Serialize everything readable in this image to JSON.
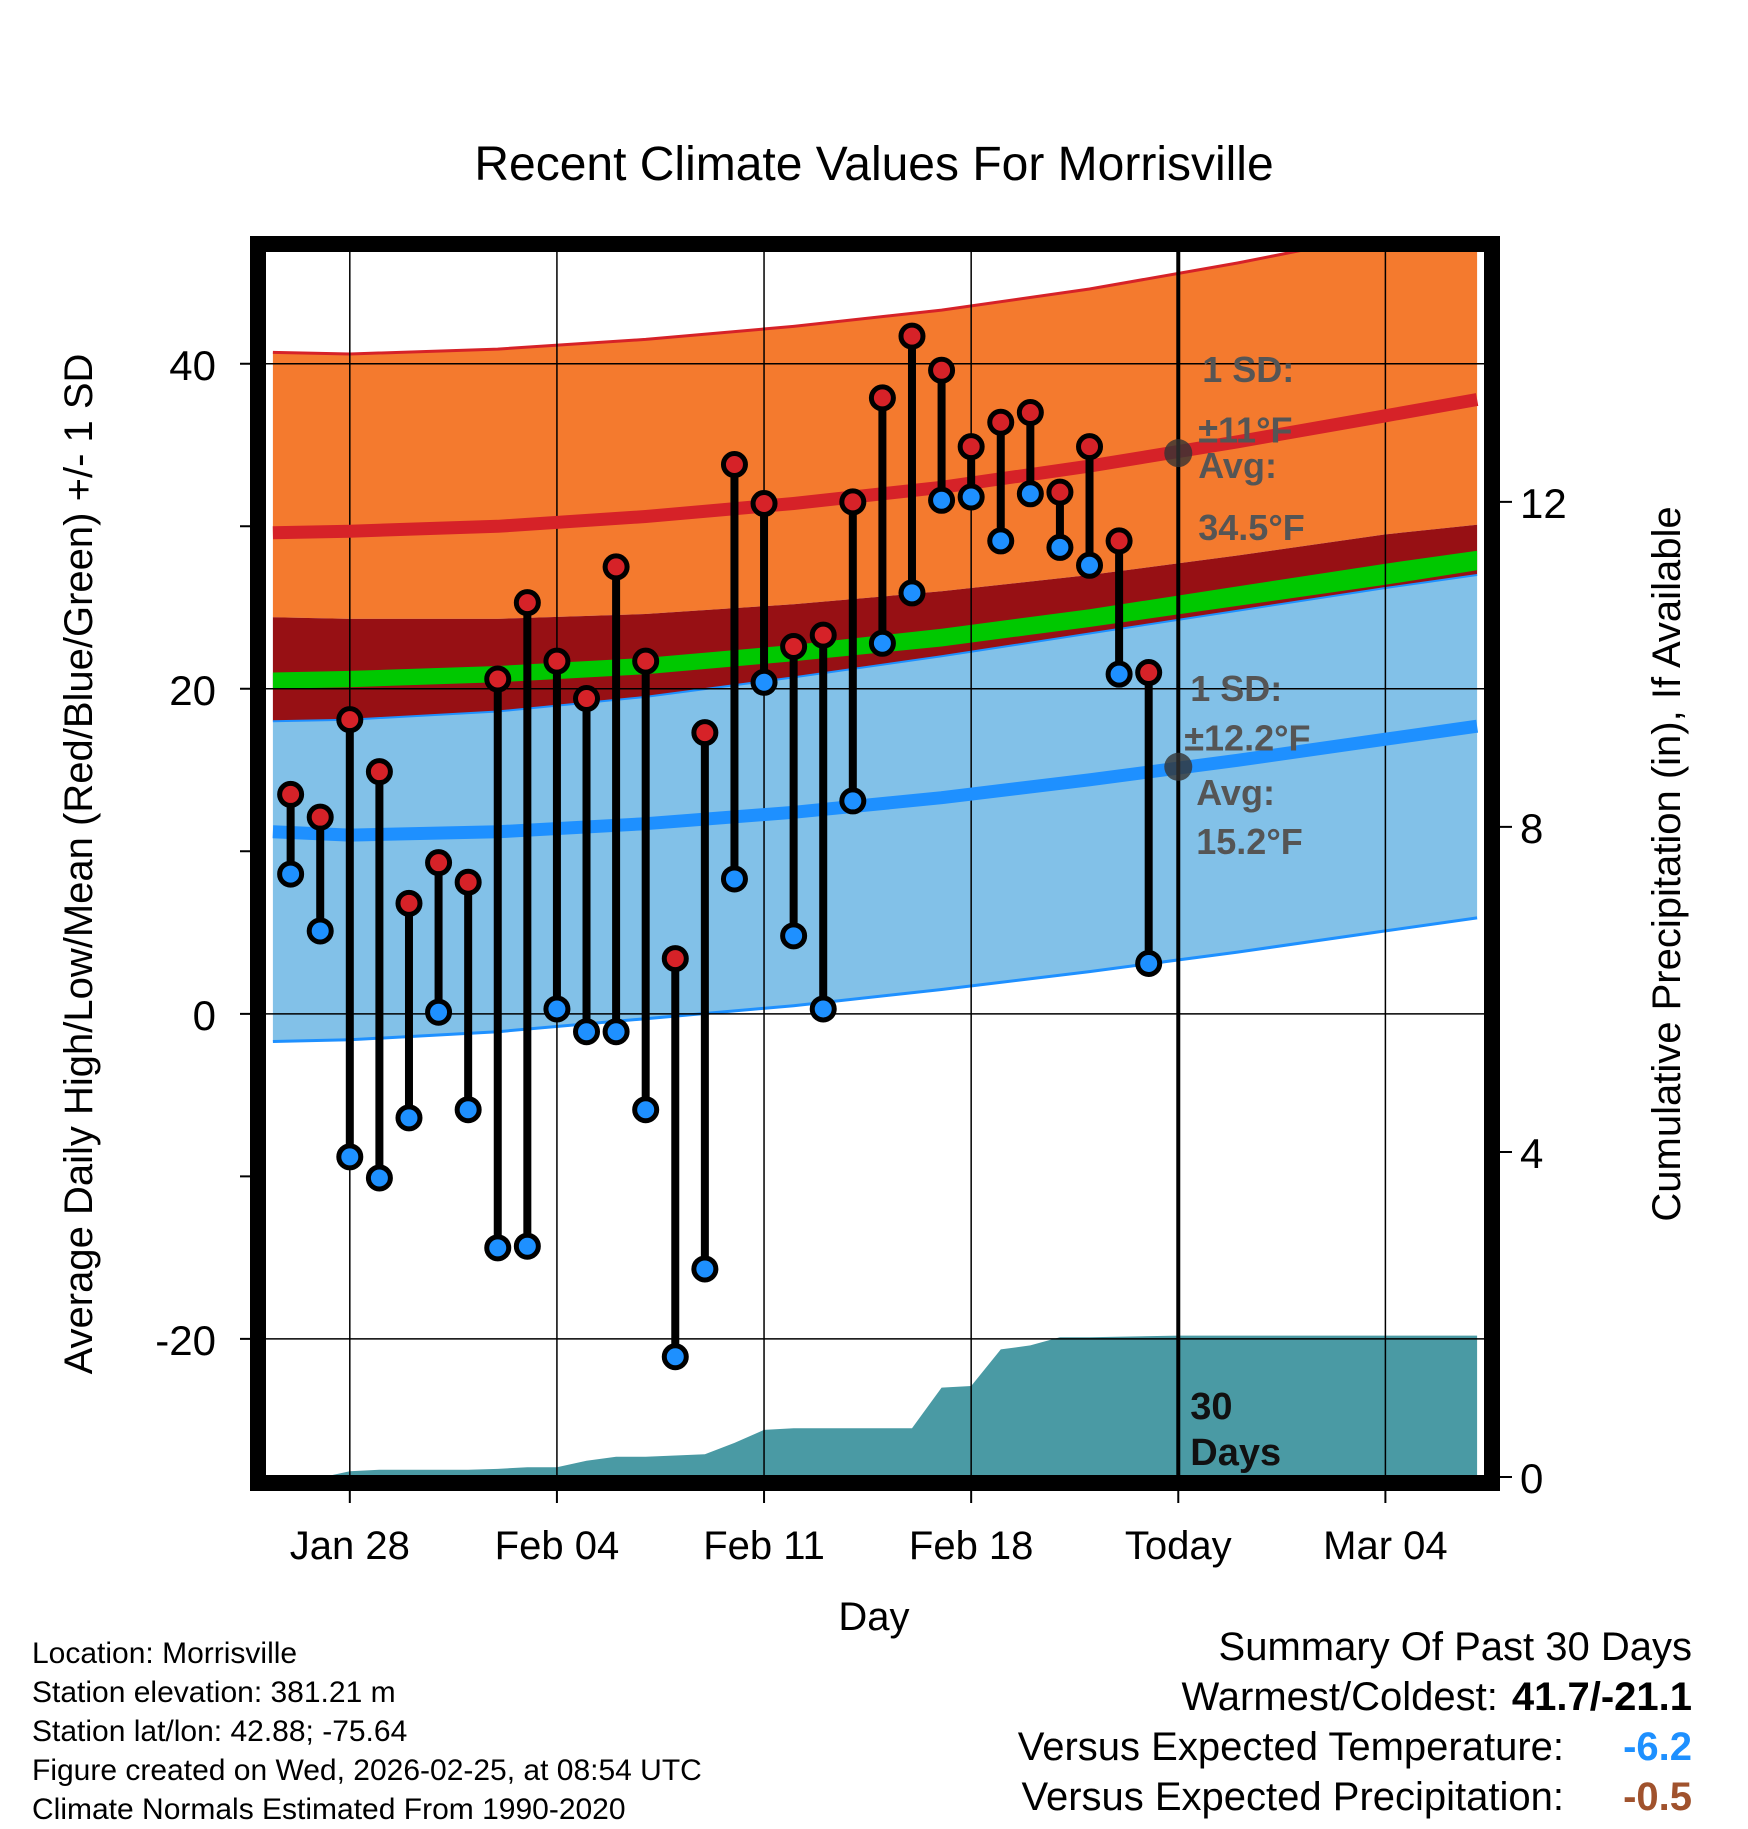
{
  "chart_data": {
    "type": "line",
    "title": "Recent Climate Values For Morrisville",
    "xlabel": "Day",
    "ylabel": "Average Daily High/Low/Mean (Red/Blue/Green) +/- 1 SD",
    "y2label": "Cumulative Precipitation (in), If Available",
    "ylim": [
      -28.5,
      47
    ],
    "y2lim": [
      0,
      15.1
    ],
    "xlim": [
      -2.9,
      38.4
    ],
    "x_tick_labels": [
      {
        "day": 0,
        "label": "Jan 28"
      },
      {
        "day": 7,
        "label": "Feb 04"
      },
      {
        "day": 14,
        "label": "Feb 11"
      },
      {
        "day": 21,
        "label": "Feb 18"
      },
      {
        "day": 28,
        "label": "Today"
      },
      {
        "day": 35,
        "label": "Mar 04"
      }
    ],
    "y_ticks": [
      -20,
      0,
      20,
      40
    ],
    "y_minor_ticks": [
      -10,
      10,
      30
    ],
    "y2_ticks": [
      0,
      4,
      8,
      12
    ],
    "today_day": 28,
    "period_label": "30\nDays",
    "normals": {
      "days": [
        -2.6,
        0,
        5,
        10,
        15,
        20,
        25,
        30,
        35,
        38.1
      ],
      "high_upper": [
        40.7,
        40.6,
        40.9,
        41.5,
        42.3,
        43.3,
        44.6,
        46.2,
        48.0,
        49.2
      ],
      "high_mean": [
        29.6,
        29.7,
        30.0,
        30.6,
        31.4,
        32.4,
        33.7,
        35.2,
        36.8,
        37.8
      ],
      "high_lower": [
        24.4,
        24.3,
        24.3,
        24.6,
        25.2,
        26.0,
        27.0,
        28.2,
        29.5,
        30.1
      ],
      "mean_upper": [
        21.0,
        21.1,
        21.4,
        21.9,
        22.7,
        23.7,
        24.9,
        26.3,
        27.7,
        28.5
      ],
      "mean_lower": [
        20.0,
        20.1,
        20.4,
        20.9,
        21.7,
        22.6,
        23.8,
        25.1,
        26.4,
        27.3
      ],
      "low_upper": [
        18.0,
        18.1,
        18.6,
        19.5,
        20.7,
        22.0,
        23.4,
        24.8,
        26.2,
        27.0
      ],
      "low_mean": [
        11.2,
        11.0,
        11.2,
        11.7,
        12.4,
        13.3,
        14.4,
        15.6,
        16.9,
        17.7
      ],
      "low_lower": [
        -1.7,
        -1.6,
        -1.1,
        -0.3,
        0.5,
        1.5,
        2.6,
        3.8,
        5.1,
        5.9
      ]
    },
    "series": [
      {
        "name": "Daily High",
        "x": [
          -2,
          -1,
          0,
          1,
          2,
          3,
          4,
          5,
          6,
          7,
          8,
          9,
          10,
          11,
          12,
          13,
          14,
          15,
          16,
          17,
          18,
          19,
          20,
          21,
          22,
          23,
          24,
          25,
          26,
          27
        ],
        "values": [
          13.5,
          12.1,
          18.1,
          14.9,
          6.8,
          9.3,
          8.1,
          20.6,
          25.3,
          21.7,
          19.4,
          27.5,
          21.7,
          3.4,
          17.3,
          33.8,
          31.4,
          22.6,
          23.3,
          31.5,
          37.9,
          41.7,
          39.6,
          34.9,
          36.4,
          37.0,
          32.1,
          34.9,
          29.1,
          21.0
        ]
      },
      {
        "name": "Daily Low",
        "x": [
          -2,
          -1,
          0,
          1,
          2,
          3,
          4,
          5,
          6,
          7,
          8,
          9,
          10,
          11,
          12,
          13,
          14,
          15,
          16,
          17,
          18,
          19,
          20,
          21,
          22,
          23,
          24,
          25,
          26,
          27
        ],
        "values": [
          8.6,
          5.1,
          -8.8,
          -10.1,
          -6.4,
          0.1,
          -5.9,
          -14.4,
          -14.3,
          0.3,
          -1.1,
          -1.1,
          -5.9,
          -21.1,
          -15.7,
          8.3,
          20.4,
          4.8,
          0.3,
          13.1,
          22.8,
          25.9,
          31.6,
          31.8,
          29.1,
          32.0,
          28.7,
          27.6,
          20.9,
          3.1
        ]
      },
      {
        "name": "Cumulative Precipitation",
        "x": [
          -2.6,
          -0.9,
          0,
          1,
          4,
          5,
          6,
          7,
          8,
          9,
          10,
          12,
          13,
          14,
          15,
          19,
          20,
          21,
          22,
          23,
          24,
          25,
          28,
          38.1
        ],
        "values": [
          0,
          0,
          0.07,
          0.09,
          0.09,
          0.1,
          0.12,
          0.12,
          0.2,
          0.25,
          0.25,
          0.28,
          0.42,
          0.58,
          0.6,
          0.6,
          1.1,
          1.12,
          1.57,
          1.62,
          1.72,
          1.72,
          1.74,
          1.74
        ]
      }
    ],
    "annotations": {
      "high_sd": "1 SD:",
      "high_sd_value": "±11°F",
      "high_avg": "Avg:",
      "high_avg_value": "34.5°F",
      "high_avg_number": 34.5,
      "low_sd": "1 SD:",
      "low_sd_value": "±12.2°F",
      "low_avg": "Avg:",
      "low_avg_value": "15.2°F",
      "low_avg_number": 15.2
    },
    "colors": {
      "high_band": "#f47a2e",
      "high_line": "#d62228",
      "dark_red_band": "#971014",
      "green_band": "#00c800",
      "low_band": "#82c1e8",
      "low_line": "#1e90ff",
      "precip_fill": "#4a9aa4",
      "high_marker": "#d62228",
      "low_marker": "#1e90ff",
      "annotation_text": "#555555"
    }
  },
  "info": {
    "location": "Location: Morrisville",
    "elevation": "Station elevation: 381.21 m",
    "latlon": "Station lat/lon: 42.88; -75.64",
    "created": "Figure created on Wed, 2026-02-25, at 08:54 UTC",
    "normals": "Climate Normals Estimated From 1990-2020"
  },
  "summary": {
    "title": "Summary Of Past 30 Days",
    "warm_cold_label": "Warmest/Coldest:",
    "warm_cold_value": "41.7/-21.1",
    "temp_label": "Versus Expected Temperature:",
    "temp_value": "-6.2",
    "temp_color": "#1e90ff",
    "precip_label": "Versus Expected Precipitation:",
    "precip_value": "-0.5",
    "precip_color": "#a0522d"
  }
}
